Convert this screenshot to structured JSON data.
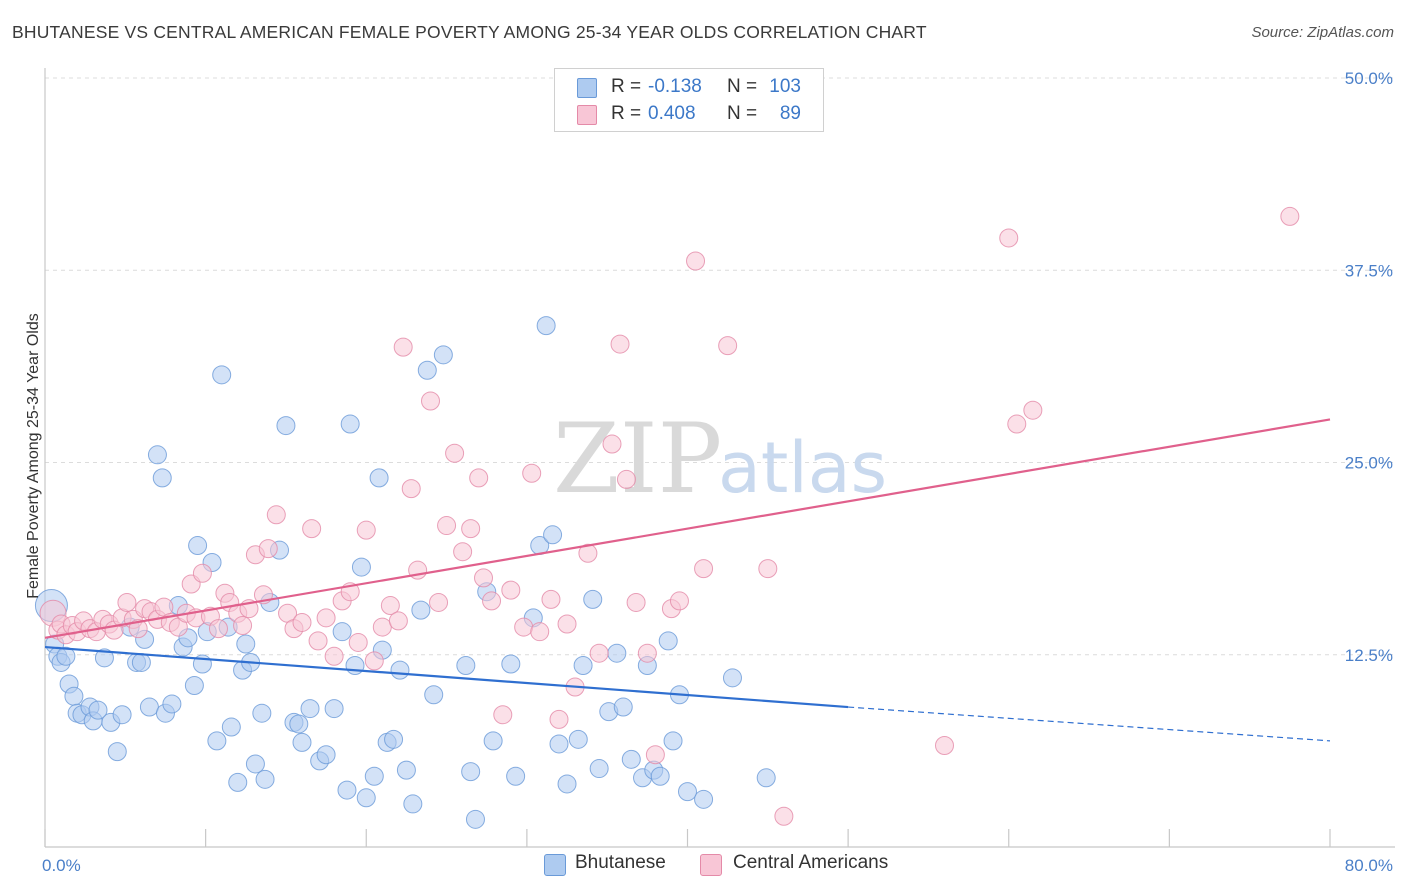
{
  "header": {
    "title": "BHUTANESE VS CENTRAL AMERICAN FEMALE POVERTY AMONG 25-34 YEAR OLDS CORRELATION CHART",
    "source": "Source: ZipAtlas.com"
  },
  "watermark": {
    "zip": "ZIP",
    "atlas": "atlas"
  },
  "legend": {
    "rows": [
      {
        "r_label": "R =",
        "r_value": "-0.138",
        "n_label": "N =",
        "n_value": "103",
        "color": "#aecbf0",
        "border": "#6a9ad8"
      },
      {
        "r_label": "R =",
        "r_value": "0.408",
        "n_label": "N =",
        "n_value": "89",
        "color": "#f8c6d6",
        "border": "#e48aa8"
      }
    ]
  },
  "bottom_legend": {
    "items": [
      {
        "label": "Bhutanese",
        "color": "#aecbf0",
        "border": "#6a9ad8"
      },
      {
        "label": "Central Americans",
        "color": "#f8c6d6",
        "border": "#e48aa8"
      }
    ]
  },
  "chart_data": {
    "type": "scatter",
    "title": "BHUTANESE VS CENTRAL AMERICAN FEMALE POVERTY AMONG 25-34 YEAR OLDS CORRELATION CHART",
    "xlabel": "",
    "ylabel": "Female Poverty Among 25-34 Year Olds",
    "xlim": [
      0,
      80
    ],
    "ylim": [
      0,
      50
    ],
    "x_tick_labels": [
      "0.0%",
      "80.0%"
    ],
    "y_tick_labels": [
      "12.5%",
      "25.0%",
      "37.5%",
      "50.0%"
    ],
    "y_tick_values": [
      12.5,
      25.0,
      37.5,
      50.0
    ],
    "grid": true,
    "legend_position": "top-center",
    "series": [
      {
        "name": "Bhutanese",
        "color": "#aecbf0",
        "edge": "#6a9ad8",
        "trend": {
          "x": [
            0,
            50
          ],
          "y": [
            13.0,
            9.1
          ],
          "dashed_to": [
            80,
            6.9
          ],
          "color": "#2f6fd0"
        },
        "points": [
          [
            0.4,
            15.7
          ],
          [
            0.6,
            13.2
          ],
          [
            0.8,
            12.4
          ],
          [
            1.0,
            12.0
          ],
          [
            1.3,
            12.4
          ],
          [
            1.5,
            10.6
          ],
          [
            1.8,
            9.8
          ],
          [
            2.0,
            8.7
          ],
          [
            2.3,
            8.6
          ],
          [
            2.8,
            9.1
          ],
          [
            3.0,
            8.2
          ],
          [
            3.3,
            8.9
          ],
          [
            3.7,
            12.3
          ],
          [
            4.1,
            8.1
          ],
          [
            4.5,
            6.2
          ],
          [
            4.8,
            8.6
          ],
          [
            5.3,
            14.3
          ],
          [
            5.7,
            12.0
          ],
          [
            6.0,
            12.0
          ],
          [
            6.2,
            13.5
          ],
          [
            6.5,
            9.1
          ],
          [
            7.0,
            25.5
          ],
          [
            7.3,
            24.0
          ],
          [
            7.5,
            8.7
          ],
          [
            7.9,
            9.3
          ],
          [
            8.3,
            15.7
          ],
          [
            8.6,
            13.0
          ],
          [
            8.9,
            13.6
          ],
          [
            9.3,
            10.5
          ],
          [
            9.5,
            19.6
          ],
          [
            9.8,
            11.9
          ],
          [
            10.1,
            14.0
          ],
          [
            10.4,
            18.5
          ],
          [
            10.7,
            6.9
          ],
          [
            11.0,
            30.7
          ],
          [
            11.4,
            14.3
          ],
          [
            11.6,
            7.8
          ],
          [
            12.0,
            4.2
          ],
          [
            12.3,
            11.5
          ],
          [
            12.5,
            13.2
          ],
          [
            12.8,
            12.0
          ],
          [
            13.1,
            5.4
          ],
          [
            13.5,
            8.7
          ],
          [
            13.7,
            4.4
          ],
          [
            14.0,
            15.9
          ],
          [
            14.6,
            19.3
          ],
          [
            15.0,
            27.4
          ],
          [
            15.5,
            8.1
          ],
          [
            15.8,
            8.0
          ],
          [
            16.0,
            6.8
          ],
          [
            16.5,
            9.0
          ],
          [
            17.1,
            5.6
          ],
          [
            17.5,
            6.0
          ],
          [
            18.0,
            9.0
          ],
          [
            18.5,
            14.0
          ],
          [
            18.8,
            3.7
          ],
          [
            19.0,
            27.5
          ],
          [
            19.3,
            11.8
          ],
          [
            19.7,
            18.2
          ],
          [
            20.0,
            3.2
          ],
          [
            20.5,
            4.6
          ],
          [
            20.8,
            24.0
          ],
          [
            21.0,
            12.8
          ],
          [
            21.3,
            6.8
          ],
          [
            21.7,
            7.0
          ],
          [
            22.1,
            11.5
          ],
          [
            22.5,
            5.0
          ],
          [
            22.9,
            2.8
          ],
          [
            23.4,
            15.4
          ],
          [
            23.8,
            31.0
          ],
          [
            24.2,
            9.9
          ],
          [
            24.8,
            32.0
          ],
          [
            26.2,
            11.8
          ],
          [
            26.5,
            4.9
          ],
          [
            26.8,
            1.8
          ],
          [
            27.5,
            16.6
          ],
          [
            27.9,
            6.9
          ],
          [
            29.0,
            11.9
          ],
          [
            29.3,
            4.6
          ],
          [
            30.4,
            14.9
          ],
          [
            30.8,
            19.6
          ],
          [
            31.2,
            33.9
          ],
          [
            31.6,
            20.3
          ],
          [
            32.0,
            6.7
          ],
          [
            32.5,
            4.1
          ],
          [
            33.2,
            7.0
          ],
          [
            33.5,
            11.8
          ],
          [
            34.1,
            16.1
          ],
          [
            34.5,
            5.1
          ],
          [
            35.1,
            8.8
          ],
          [
            35.6,
            12.6
          ],
          [
            36.0,
            9.1
          ],
          [
            36.5,
            5.7
          ],
          [
            37.2,
            4.5
          ],
          [
            37.5,
            11.8
          ],
          [
            37.9,
            5.0
          ],
          [
            38.3,
            4.6
          ],
          [
            38.8,
            13.4
          ],
          [
            39.1,
            6.9
          ],
          [
            39.5,
            9.9
          ],
          [
            40.0,
            3.6
          ],
          [
            41.0,
            3.1
          ],
          [
            42.8,
            11.0
          ],
          [
            44.9,
            4.5
          ]
        ]
      },
      {
        "name": "Central Americans",
        "color": "#f8c6d6",
        "edge": "#e48aa8",
        "trend": {
          "x": [
            0,
            80
          ],
          "y": [
            13.6,
            27.8
          ],
          "color": "#e0608c"
        },
        "points": [
          [
            0.5,
            15.2
          ],
          [
            0.8,
            14.1
          ],
          [
            1.0,
            14.5
          ],
          [
            1.3,
            13.8
          ],
          [
            1.7,
            14.4
          ],
          [
            2.0,
            14.0
          ],
          [
            2.4,
            14.7
          ],
          [
            2.8,
            14.2
          ],
          [
            3.2,
            14.0
          ],
          [
            3.6,
            14.8
          ],
          [
            4.0,
            14.5
          ],
          [
            4.3,
            14.1
          ],
          [
            4.8,
            14.9
          ],
          [
            5.1,
            15.9
          ],
          [
            5.5,
            14.8
          ],
          [
            5.8,
            14.2
          ],
          [
            6.2,
            15.5
          ],
          [
            6.6,
            15.3
          ],
          [
            7.0,
            14.8
          ],
          [
            7.4,
            15.6
          ],
          [
            7.8,
            14.6
          ],
          [
            8.3,
            14.3
          ],
          [
            8.8,
            15.2
          ],
          [
            9.1,
            17.1
          ],
          [
            9.4,
            14.9
          ],
          [
            9.8,
            17.8
          ],
          [
            10.3,
            15.0
          ],
          [
            10.8,
            14.2
          ],
          [
            11.2,
            16.5
          ],
          [
            11.5,
            15.9
          ],
          [
            12.0,
            15.2
          ],
          [
            12.3,
            14.4
          ],
          [
            12.7,
            15.5
          ],
          [
            13.1,
            19.0
          ],
          [
            13.6,
            16.4
          ],
          [
            13.9,
            19.4
          ],
          [
            14.4,
            21.6
          ],
          [
            15.1,
            15.2
          ],
          [
            15.5,
            14.2
          ],
          [
            16.0,
            14.6
          ],
          [
            16.6,
            20.7
          ],
          [
            17.0,
            13.4
          ],
          [
            17.5,
            14.9
          ],
          [
            18.0,
            12.4
          ],
          [
            18.5,
            16.0
          ],
          [
            19.0,
            16.6
          ],
          [
            19.5,
            13.3
          ],
          [
            20.0,
            20.6
          ],
          [
            20.5,
            12.1
          ],
          [
            21.0,
            14.3
          ],
          [
            21.5,
            15.7
          ],
          [
            22.0,
            14.7
          ],
          [
            22.3,
            32.5
          ],
          [
            22.8,
            23.3
          ],
          [
            23.2,
            18.0
          ],
          [
            24.0,
            29.0
          ],
          [
            24.5,
            15.9
          ],
          [
            25.0,
            20.9
          ],
          [
            25.5,
            25.6
          ],
          [
            26.0,
            19.2
          ],
          [
            26.5,
            20.7
          ],
          [
            27.0,
            24.0
          ],
          [
            27.3,
            17.5
          ],
          [
            27.8,
            16.0
          ],
          [
            28.5,
            8.6
          ],
          [
            29.0,
            16.7
          ],
          [
            29.8,
            14.3
          ],
          [
            30.3,
            24.3
          ],
          [
            30.8,
            14.0
          ],
          [
            31.5,
            16.1
          ],
          [
            32.0,
            8.3
          ],
          [
            32.5,
            14.5
          ],
          [
            33.0,
            10.4
          ],
          [
            33.8,
            19.1
          ],
          [
            34.5,
            12.6
          ],
          [
            35.3,
            26.2
          ],
          [
            35.8,
            32.7
          ],
          [
            36.2,
            23.9
          ],
          [
            36.8,
            15.9
          ],
          [
            37.5,
            12.6
          ],
          [
            38.0,
            6.0
          ],
          [
            39.0,
            15.5
          ],
          [
            40.5,
            38.1
          ],
          [
            41.0,
            18.1
          ],
          [
            42.5,
            32.6
          ],
          [
            45.0,
            18.1
          ],
          [
            46.0,
            2.0
          ],
          [
            56.0,
            6.6
          ],
          [
            60.0,
            39.6
          ],
          [
            60.5,
            27.5
          ],
          [
            61.5,
            28.4
          ],
          [
            77.5,
            41.0
          ],
          [
            39.5,
            16.0
          ]
        ]
      }
    ]
  }
}
